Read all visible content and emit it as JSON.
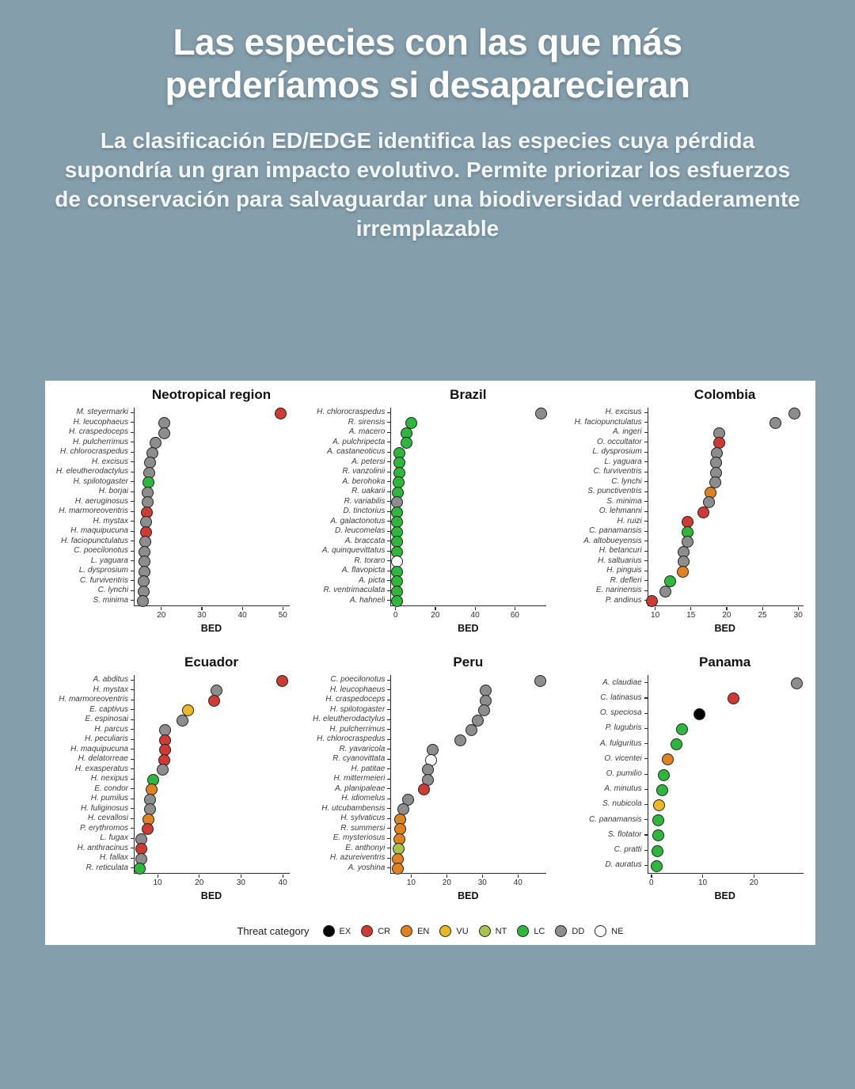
{
  "page": {
    "background": "#849eac",
    "card_background": "#ffffff"
  },
  "header": {
    "title": "Las especies con las que más perderíamos si desaparecieran",
    "subtitle": "La clasificación ED/EDGE identifica las especies cuya pérdida supondría un gran impacto evolutivo. Permite priorizar los esfuerzos de conservación para salvaguardar una biodiversidad verdaderamente irremplazable"
  },
  "chart_data": {
    "type": "scatter",
    "xlabel": "BED",
    "legend": {
      "label": "Threat category",
      "items": [
        {
          "code": "EX",
          "color": "#000000"
        },
        {
          "code": "CR",
          "color": "#cf3a32"
        },
        {
          "code": "EN",
          "color": "#e0821f"
        },
        {
          "code": "VU",
          "color": "#eab824"
        },
        {
          "code": "NT",
          "color": "#a5c44c"
        },
        {
          "code": "LC",
          "color": "#2db83d"
        },
        {
          "code": "DD",
          "color": "#8d8d8d"
        },
        {
          "code": "NE",
          "color": "#ffffff"
        }
      ]
    },
    "panels": [
      {
        "title": "Neotropical region",
        "xlim": [
          13.2,
          51.5
        ],
        "ticks": [
          20,
          30,
          40,
          50
        ],
        "species": [
          {
            "name": "M. steyermarki",
            "value": 49.2,
            "category": "CR"
          },
          {
            "name": "H. leucophaeus",
            "value": 20.5,
            "category": "DD"
          },
          {
            "name": "H. craspedoceps",
            "value": 20.5,
            "category": "DD"
          },
          {
            "name": "H. pulcherrimus",
            "value": 18.3,
            "category": "DD"
          },
          {
            "name": "H. chlorocraspedus",
            "value": 17.5,
            "category": "DD"
          },
          {
            "name": "H. excisus",
            "value": 17.0,
            "category": "DD"
          },
          {
            "name": "H. eleutherodactylus",
            "value": 16.9,
            "category": "DD"
          },
          {
            "name": "H. spilotogaster",
            "value": 16.6,
            "category": "LC"
          },
          {
            "name": "H. borjai",
            "value": 16.4,
            "category": "DD"
          },
          {
            "name": "H. aeruginosus",
            "value": 16.4,
            "category": "DD"
          },
          {
            "name": "H. marmoreoventris",
            "value": 16.2,
            "category": "CR"
          },
          {
            "name": "H. mystax",
            "value": 16.0,
            "category": "DD"
          },
          {
            "name": "H. maquipucuna",
            "value": 16.0,
            "category": "CR"
          },
          {
            "name": "H. faciopunctulatus",
            "value": 15.9,
            "category": "DD"
          },
          {
            "name": "C. poecilonotus",
            "value": 15.7,
            "category": "DD"
          },
          {
            "name": "L. yaguara",
            "value": 15.6,
            "category": "DD"
          },
          {
            "name": "L. dysprosium",
            "value": 15.6,
            "category": "DD"
          },
          {
            "name": "C. furviventris",
            "value": 15.5,
            "category": "DD"
          },
          {
            "name": "C. lynchi",
            "value": 15.5,
            "category": "DD"
          },
          {
            "name": "S. minima",
            "value": 15.2,
            "category": "DD"
          }
        ]
      },
      {
        "title": "Brazil",
        "xlim": [
          -2.5,
          75.5
        ],
        "ticks": [
          0,
          20,
          40,
          60
        ],
        "species": [
          {
            "name": "H. chlorocraspedus",
            "value": 72.8,
            "category": "DD"
          },
          {
            "name": "R. sirensis",
            "value": 7.4,
            "category": "LC"
          },
          {
            "name": "A. macero",
            "value": 5.0,
            "category": "LC"
          },
          {
            "name": "A. pulchripecta",
            "value": 5.0,
            "category": "LC"
          },
          {
            "name": "A. castaneoticus",
            "value": 1.7,
            "category": "LC"
          },
          {
            "name": "A. petersi",
            "value": 1.7,
            "category": "LC"
          },
          {
            "name": "R. vanzolinii",
            "value": 1.5,
            "category": "LC"
          },
          {
            "name": "A. berohoka",
            "value": 1.1,
            "category": "LC"
          },
          {
            "name": "R. uakarii",
            "value": 0.7,
            "category": "LC"
          },
          {
            "name": "R. variabilis",
            "value": 0.5,
            "category": "DD"
          },
          {
            "name": "D. tinctorius",
            "value": 0.5,
            "category": "LC"
          },
          {
            "name": "A. galactonotus",
            "value": 0.5,
            "category": "LC"
          },
          {
            "name": "D. leucomelas",
            "value": 0.5,
            "category": "LC"
          },
          {
            "name": "A. braccata",
            "value": 0.5,
            "category": "LC"
          },
          {
            "name": "A. quinquevittatus",
            "value": 0.5,
            "category": "LC"
          },
          {
            "name": "R. toraro",
            "value": 0.4,
            "category": "NE"
          },
          {
            "name": "A. flavopicta",
            "value": 0.4,
            "category": "LC"
          },
          {
            "name": "A. picta",
            "value": 0.4,
            "category": "LC"
          },
          {
            "name": "R. ventrimaculata",
            "value": 0.4,
            "category": "LC"
          },
          {
            "name": "A. hahneli",
            "value": 0.4,
            "category": "LC"
          }
        ]
      },
      {
        "title": "Colombia",
        "xlim": [
          8.9,
          30.6
        ],
        "ticks": [
          10,
          15,
          20,
          25,
          30
        ],
        "species": [
          {
            "name": "H. excisus",
            "value": 29.4,
            "category": "DD"
          },
          {
            "name": "H. faciopunctulatus",
            "value": 26.7,
            "category": "DD"
          },
          {
            "name": "A. ingeri",
            "value": 18.9,
            "category": "DD"
          },
          {
            "name": "O. occultator",
            "value": 18.8,
            "category": "CR"
          },
          {
            "name": "L. dysprosium",
            "value": 18.5,
            "category": "DD"
          },
          {
            "name": "L. yaguara",
            "value": 18.4,
            "category": "DD"
          },
          {
            "name": "C. furviventris",
            "value": 18.4,
            "category": "DD"
          },
          {
            "name": "C. lynchi",
            "value": 18.3,
            "category": "DD"
          },
          {
            "name": "S. punctiventris",
            "value": 17.6,
            "category": "EN"
          },
          {
            "name": "S. minima",
            "value": 17.4,
            "category": "DD"
          },
          {
            "name": "O. lehmanni",
            "value": 16.6,
            "category": "CR"
          },
          {
            "name": "H. ruizi",
            "value": 14.4,
            "category": "CR"
          },
          {
            "name": "C. panamansis",
            "value": 14.4,
            "category": "LC"
          },
          {
            "name": "A. altobueyensis",
            "value": 14.4,
            "category": "DD"
          },
          {
            "name": "H. betancuri",
            "value": 13.9,
            "category": "DD"
          },
          {
            "name": "H. saltuarius",
            "value": 13.9,
            "category": "DD"
          },
          {
            "name": "H. pinguis",
            "value": 13.7,
            "category": "EN"
          },
          {
            "name": "R. defleri",
            "value": 12.0,
            "category": "LC"
          },
          {
            "name": "E. narinensis",
            "value": 11.3,
            "category": "DD"
          },
          {
            "name": "P. andinus",
            "value": 9.4,
            "category": "CR"
          }
        ]
      },
      {
        "title": "Ecuador",
        "xlim": [
          4.3,
          41.5
        ],
        "ticks": [
          10,
          20,
          30,
          40
        ],
        "species": [
          {
            "name": "A. abditus",
            "value": 39.7,
            "category": "CR"
          },
          {
            "name": "H. mystax",
            "value": 23.9,
            "category": "DD"
          },
          {
            "name": "H. marmoreoventris",
            "value": 23.4,
            "category": "CR"
          },
          {
            "name": "E. captivus",
            "value": 17.1,
            "category": "VU"
          },
          {
            "name": "E. espinosai",
            "value": 15.7,
            "category": "DD"
          },
          {
            "name": "H. parcus",
            "value": 11.7,
            "category": "DD"
          },
          {
            "name": "H. peculiaris",
            "value": 11.6,
            "category": "CR"
          },
          {
            "name": "H. maquipucuna",
            "value": 11.6,
            "category": "CR"
          },
          {
            "name": "H. delatorreae",
            "value": 11.5,
            "category": "CR"
          },
          {
            "name": "H. exasperatus",
            "value": 11.1,
            "category": "DD"
          },
          {
            "name": "H. nexipus",
            "value": 8.7,
            "category": "LC"
          },
          {
            "name": "E. condor",
            "value": 8.4,
            "category": "EN"
          },
          {
            "name": "H. pumilus",
            "value": 8.0,
            "category": "DD"
          },
          {
            "name": "H. fuliginosus",
            "value": 8.0,
            "category": "DD"
          },
          {
            "name": "H. cevallosi",
            "value": 7.7,
            "category": "EN"
          },
          {
            "name": "P. erythromos",
            "value": 7.4,
            "category": "CR"
          },
          {
            "name": "L. fugax",
            "value": 6.0,
            "category": "DD"
          },
          {
            "name": "H. anthracinus",
            "value": 5.9,
            "category": "CR"
          },
          {
            "name": "H. fallax",
            "value": 5.9,
            "category": "DD"
          },
          {
            "name": "R. reticulata",
            "value": 5.6,
            "category": "LC"
          }
        ]
      },
      {
        "title": "Peru",
        "xlim": [
          4.2,
          47.8
        ],
        "ticks": [
          10,
          20,
          30,
          40
        ],
        "species": [
          {
            "name": "C. poecilonotus",
            "value": 46.1,
            "category": "DD"
          },
          {
            "name": "H. leucophaeus",
            "value": 30.7,
            "category": "DD"
          },
          {
            "name": "H. craspedoceps",
            "value": 30.7,
            "category": "DD"
          },
          {
            "name": "H. spilotogaster",
            "value": 30.2,
            "category": "DD"
          },
          {
            "name": "H. eleutherodactylus",
            "value": 28.5,
            "category": "DD"
          },
          {
            "name": "H. pulcherrimus",
            "value": 26.6,
            "category": "DD"
          },
          {
            "name": "H. chlorocraspedus",
            "value": 23.7,
            "category": "DD"
          },
          {
            "name": "R. yavaricola",
            "value": 15.8,
            "category": "DD"
          },
          {
            "name": "R. cyanovittata",
            "value": 15.4,
            "category": "NE"
          },
          {
            "name": "H. patitae",
            "value": 14.4,
            "category": "DD"
          },
          {
            "name": "H. mittermeieri",
            "value": 14.4,
            "category": "DD"
          },
          {
            "name": "A. planipaleae",
            "value": 13.3,
            "category": "CR"
          },
          {
            "name": "H. idiomelus",
            "value": 9.0,
            "category": "DD"
          },
          {
            "name": "H. utcubambensis",
            "value": 7.6,
            "category": "DD"
          },
          {
            "name": "H. sylvaticus",
            "value": 6.7,
            "category": "EN"
          },
          {
            "name": "R. summersi",
            "value": 6.6,
            "category": "EN"
          },
          {
            "name": "E. mysteriosus",
            "value": 6.4,
            "category": "EN"
          },
          {
            "name": "E. anthonyi",
            "value": 6.2,
            "category": "NT"
          },
          {
            "name": "H. azureiventris",
            "value": 6.0,
            "category": "EN"
          },
          {
            "name": "A. yoshina",
            "value": 6.0,
            "category": "EN"
          }
        ]
      },
      {
        "title": "Panama",
        "xlim": [
          -0.8,
          29.5
        ],
        "ticks": [
          0,
          10,
          20
        ],
        "species": [
          {
            "name": "A. claudiae",
            "value": 28.3,
            "category": "DD"
          },
          {
            "name": "C. latinasus",
            "value": 15.8,
            "category": "CR"
          },
          {
            "name": "O. speciosa",
            "value": 9.3,
            "category": "EX"
          },
          {
            "name": "P. lugubris",
            "value": 5.9,
            "category": "LC"
          },
          {
            "name": "A. fulguritus",
            "value": 4.7,
            "category": "LC"
          },
          {
            "name": "O. vicentei",
            "value": 3.1,
            "category": "EN"
          },
          {
            "name": "O. pumilio",
            "value": 2.3,
            "category": "LC"
          },
          {
            "name": "A. minutus",
            "value": 2.0,
            "category": "LC"
          },
          {
            "name": "S. nubicola",
            "value": 1.4,
            "category": "VU"
          },
          {
            "name": "C. panamansis",
            "value": 1.2,
            "category": "LC"
          },
          {
            "name": "S. flotator",
            "value": 1.2,
            "category": "LC"
          },
          {
            "name": "C. pratti",
            "value": 1.0,
            "category": "LC"
          },
          {
            "name": "D. auratus",
            "value": 0.9,
            "category": "LC"
          }
        ]
      }
    ]
  }
}
